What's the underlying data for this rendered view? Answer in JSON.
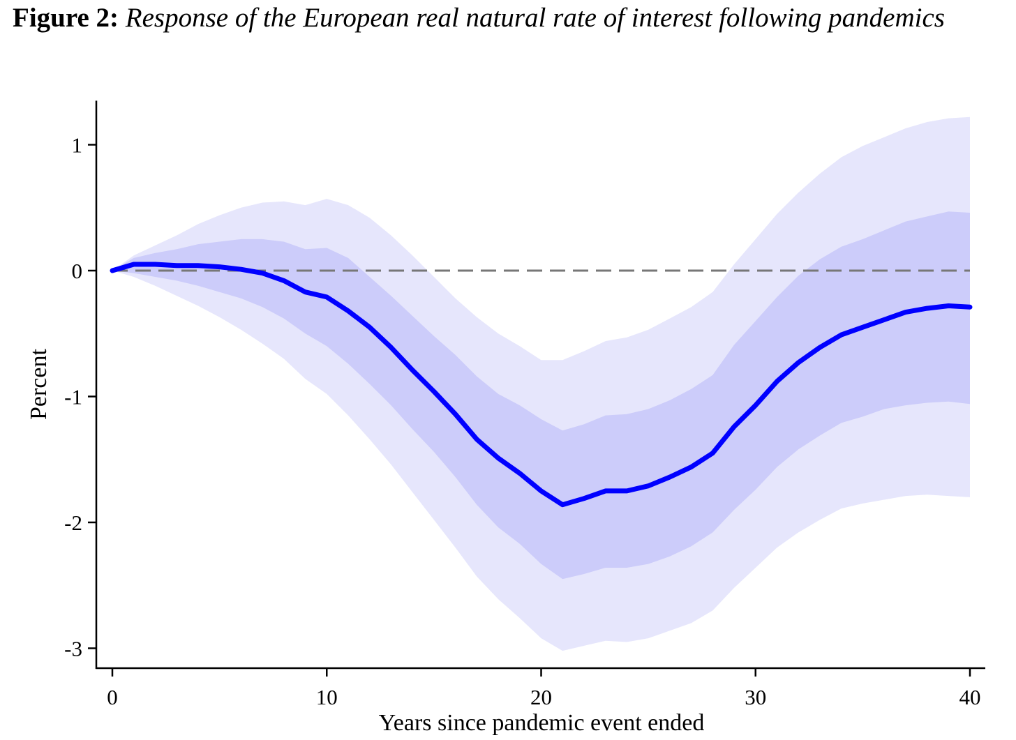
{
  "figure": {
    "label": "Figure 2:",
    "title": "Response of the European real natural rate of interest following pandemics"
  },
  "colors": {
    "line": "#0000ff",
    "inner_band": "#ccccfa",
    "outer_band": "#e6e6fc",
    "zero_line": "#777777"
  },
  "chart_data": {
    "type": "line",
    "title": "Response of the European real natural rate of interest following pandemics",
    "xlabel": "Years since pandemic event ended",
    "ylabel": "Percent",
    "xlim": [
      0,
      40
    ],
    "ylim": [
      -3.15,
      1.35
    ],
    "x_ticks": [
      0,
      10,
      20,
      30,
      40
    ],
    "x_tick_labels": [
      "0",
      "10",
      "20",
      "30",
      "40"
    ],
    "y_ticks": [
      1,
      0,
      -1,
      -2,
      -3
    ],
    "y_tick_labels": [
      "1",
      "0",
      "-1",
      "-2",
      "-3"
    ],
    "grid": false,
    "reference_line": {
      "y": 0,
      "style": "dashed"
    },
    "x": [
      0,
      1,
      2,
      3,
      4,
      5,
      6,
      7,
      8,
      9,
      10,
      11,
      12,
      13,
      14,
      15,
      16,
      17,
      18,
      19,
      20,
      21,
      22,
      23,
      24,
      25,
      26,
      27,
      28,
      29,
      30,
      31,
      32,
      33,
      34,
      35,
      36,
      37,
      38,
      39,
      40
    ],
    "series": [
      {
        "values": [
          0.0,
          0.05,
          0.05,
          0.04,
          0.04,
          0.03,
          0.01,
          -0.02,
          -0.08,
          -0.17,
          -0.21,
          -0.32,
          -0.45,
          -0.61,
          -0.79,
          -0.96,
          -1.14,
          -1.34,
          -1.49,
          -1.61,
          -1.75,
          -1.86,
          -1.81,
          -1.75,
          -1.75,
          -1.71,
          -1.64,
          -1.56,
          -1.45,
          -1.24,
          -1.07,
          -0.88,
          -0.73,
          -0.61,
          -0.51,
          -0.45,
          -0.39,
          -0.33,
          -0.3,
          -0.28,
          -0.29
        ]
      }
    ],
    "bands": [
      {
        "level": "inner",
        "upper": [
          0.0,
          0.1,
          0.14,
          0.17,
          0.21,
          0.23,
          0.25,
          0.25,
          0.23,
          0.17,
          0.18,
          0.1,
          -0.05,
          -0.2,
          -0.36,
          -0.52,
          -0.67,
          -0.84,
          -0.98,
          -1.07,
          -1.18,
          -1.27,
          -1.22,
          -1.15,
          -1.14,
          -1.1,
          -1.03,
          -0.94,
          -0.83,
          -0.59,
          -0.4,
          -0.21,
          -0.04,
          0.09,
          0.19,
          0.25,
          0.32,
          0.39,
          0.43,
          0.47,
          0.46
        ],
        "lower": [
          0.0,
          -0.02,
          -0.05,
          -0.08,
          -0.12,
          -0.17,
          -0.22,
          -0.29,
          -0.38,
          -0.5,
          -0.6,
          -0.74,
          -0.9,
          -1.07,
          -1.26,
          -1.44,
          -1.64,
          -1.86,
          -2.04,
          -2.17,
          -2.33,
          -2.45,
          -2.41,
          -2.36,
          -2.36,
          -2.33,
          -2.27,
          -2.19,
          -2.08,
          -1.9,
          -1.74,
          -1.56,
          -1.42,
          -1.31,
          -1.21,
          -1.16,
          -1.1,
          -1.07,
          -1.05,
          -1.04,
          -1.06
        ]
      },
      {
        "level": "outer",
        "upper": [
          0.0,
          0.12,
          0.2,
          0.28,
          0.37,
          0.44,
          0.5,
          0.54,
          0.55,
          0.52,
          0.57,
          0.52,
          0.42,
          0.28,
          0.12,
          -0.05,
          -0.22,
          -0.37,
          -0.5,
          -0.6,
          -0.71,
          -0.71,
          -0.64,
          -0.56,
          -0.53,
          -0.47,
          -0.38,
          -0.29,
          -0.17,
          0.05,
          0.25,
          0.45,
          0.62,
          0.77,
          0.9,
          0.99,
          1.06,
          1.13,
          1.18,
          1.21,
          1.22
        ],
        "lower": [
          0.0,
          -0.05,
          -0.12,
          -0.2,
          -0.28,
          -0.37,
          -0.47,
          -0.58,
          -0.7,
          -0.86,
          -0.98,
          -1.15,
          -1.34,
          -1.54,
          -1.76,
          -1.98,
          -2.2,
          -2.43,
          -2.61,
          -2.76,
          -2.92,
          -3.02,
          -2.98,
          -2.94,
          -2.95,
          -2.92,
          -2.86,
          -2.8,
          -2.7,
          -2.52,
          -2.36,
          -2.2,
          -2.08,
          -1.98,
          -1.89,
          -1.85,
          -1.82,
          -1.79,
          -1.78,
          -1.79,
          -1.8
        ]
      }
    ]
  }
}
